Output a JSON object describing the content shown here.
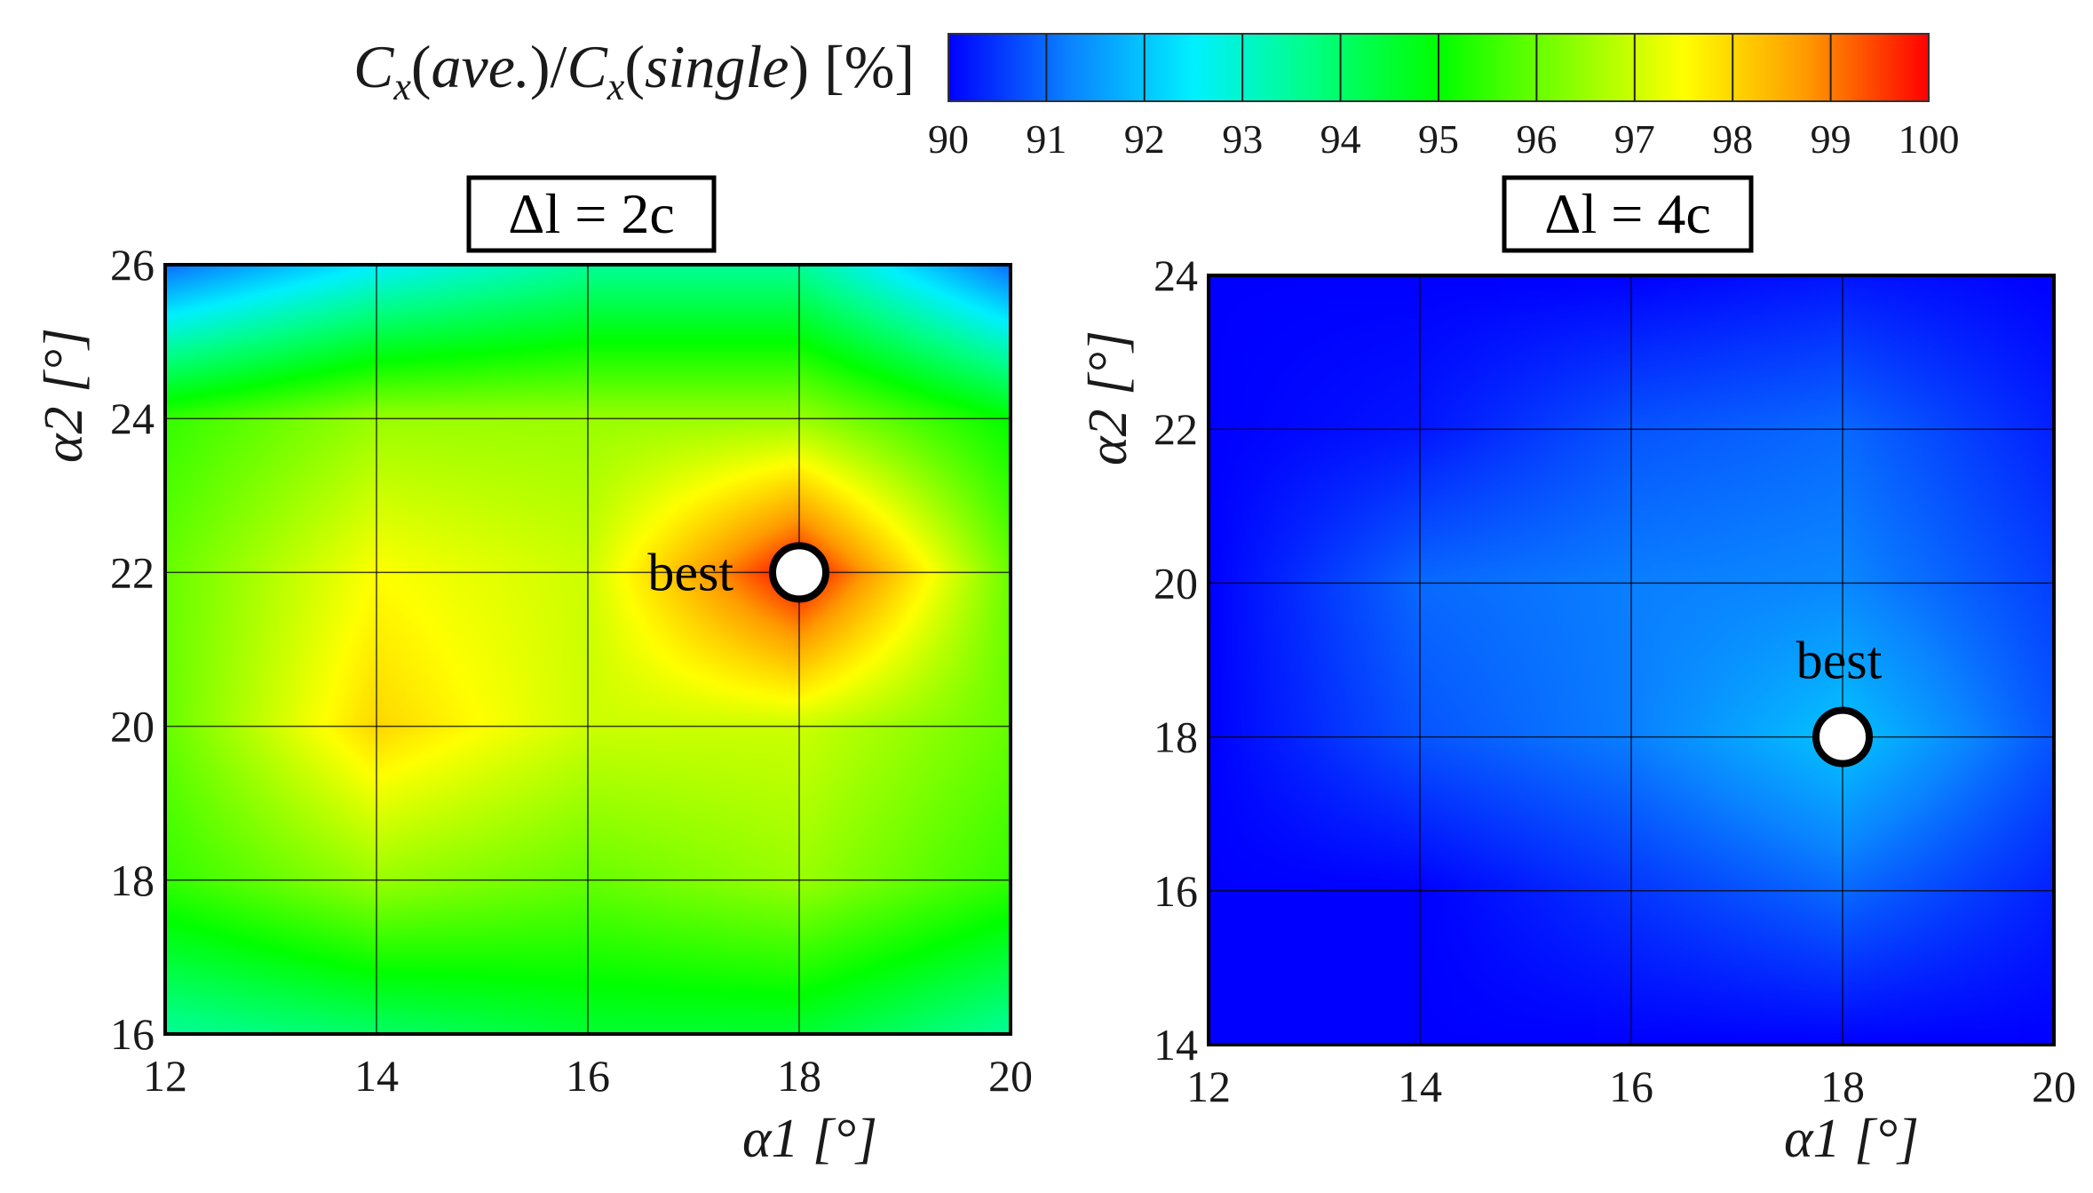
{
  "colors": {
    "scale": [
      "#0000ff",
      "#0a84ff",
      "#00f0ff",
      "#00ff80",
      "#00ff00",
      "#80ff00",
      "#ffff00",
      "#ff9a00",
      "#ff0000"
    ],
    "grid": "#000000",
    "marker_fill": "#ffffff",
    "marker_stroke": "#000000"
  },
  "colorbar": {
    "label": "C_x(ave.)/C_x(single) [%]",
    "ticks": [
      "90",
      "91",
      "92",
      "93",
      "94",
      "95",
      "96",
      "97",
      "98",
      "99",
      "100"
    ]
  },
  "chart_data": [
    {
      "type": "heatmap",
      "title": "Δl = 2c",
      "xlabel": "α1 [°]",
      "ylabel": "α2 [°]",
      "xlim": [
        12,
        20
      ],
      "ylim": [
        16,
        26
      ],
      "xticks": [
        "12",
        "14",
        "16",
        "18",
        "20"
      ],
      "yticks": [
        "16",
        "18",
        "20",
        "22",
        "24",
        "26"
      ],
      "clim": [
        90,
        100
      ],
      "grid": true,
      "x": [
        12,
        14,
        16,
        18,
        20
      ],
      "y": [
        16,
        18,
        20,
        22,
        24,
        26
      ],
      "z": [
        [
          93.5,
          94.0,
          94.5,
          94.5,
          93.5
        ],
        [
          95.5,
          96.5,
          96.0,
          96.5,
          95.5
        ],
        [
          96.0,
          98.0,
          97.0,
          97.0,
          96.0
        ],
        [
          96.0,
          97.5,
          97.0,
          100.0,
          96.0
        ],
        [
          95.5,
          96.5,
          96.5,
          96.5,
          95.0
        ],
        [
          91.0,
          92.5,
          93.5,
          93.5,
          91.0
        ]
      ],
      "annotations": [
        {
          "text": "best",
          "x": 18,
          "y": 22
        }
      ]
    },
    {
      "type": "heatmap",
      "title": "Δl = 4c",
      "xlabel": "α1 [°]",
      "ylabel": "α2 [°]",
      "xlim": [
        12,
        20
      ],
      "ylim": [
        14,
        24
      ],
      "xticks": [
        "12",
        "14",
        "16",
        "18",
        "20"
      ],
      "yticks": [
        "14",
        "16",
        "18",
        "20",
        "22",
        "24"
      ],
      "clim": [
        90,
        100
      ],
      "grid": true,
      "x": [
        12,
        14,
        16,
        18,
        20
      ],
      "y": [
        14,
        16,
        18,
        20,
        22,
        24
      ],
      "z": [
        [
          90.0,
          90.0,
          90.0,
          90.0,
          90.0
        ],
        [
          90.0,
          90.0,
          90.5,
          91.0,
          90.3
        ],
        [
          90.0,
          90.8,
          91.2,
          92.0,
          90.8
        ],
        [
          90.0,
          91.0,
          91.2,
          91.3,
          90.6
        ],
        [
          90.0,
          90.2,
          90.8,
          91.0,
          90.3
        ],
        [
          90.0,
          90.0,
          90.0,
          90.2,
          90.0
        ]
      ],
      "annotations": [
        {
          "text": "best",
          "x": 18,
          "y": 18
        }
      ]
    }
  ]
}
